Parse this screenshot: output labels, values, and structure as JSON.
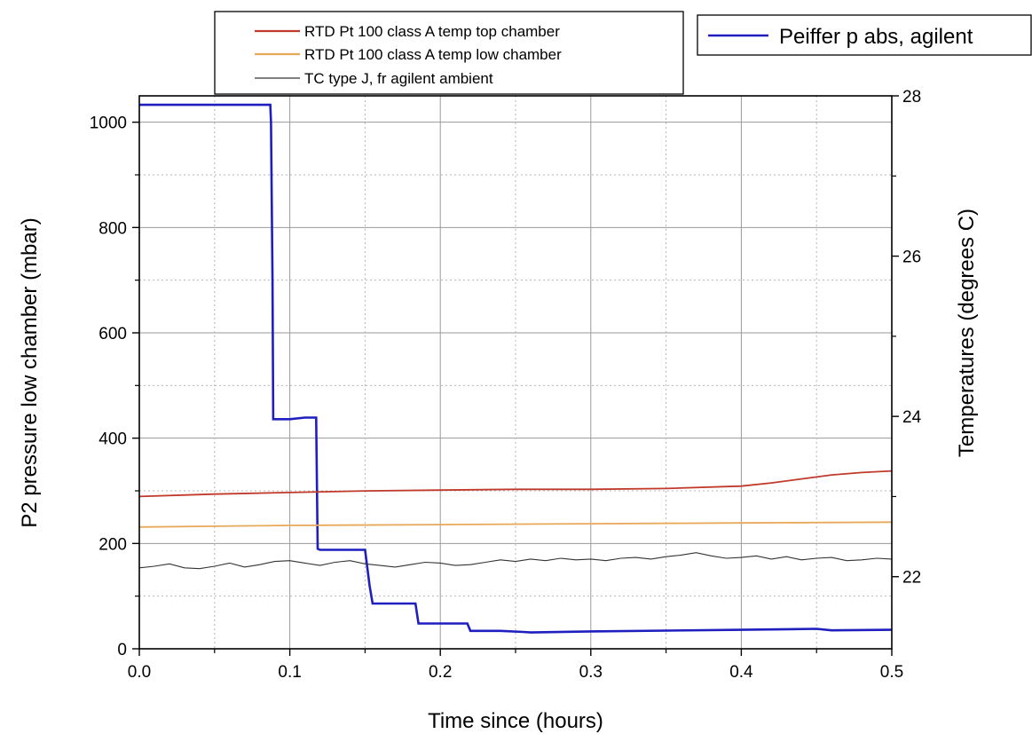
{
  "chart_data": {
    "type": "line",
    "xlabel": "Time since (hours)",
    "ylabel_left": "P2 pressure low chamber (mbar)",
    "ylabel_right": "Temperatures (degrees C)",
    "xlim": [
      0,
      0.5
    ],
    "ylim_left": [
      0,
      1050
    ],
    "ylim_right": [
      21.1,
      28
    ],
    "x_ticks": [
      0.0,
      0.1,
      0.2,
      0.3,
      0.4,
      0.5
    ],
    "x_tick_labels": [
      "0.0",
      "0.1",
      "0.2",
      "0.3",
      "0.4",
      "0.5"
    ],
    "y_left_ticks": [
      0,
      200,
      400,
      600,
      800,
      1000
    ],
    "y_left_tick_labels": [
      "0",
      "200",
      "400",
      "600",
      "800",
      "1000"
    ],
    "y_right_ticks": [
      22,
      24,
      26,
      28
    ],
    "y_right_tick_labels": [
      "22",
      "24",
      "26",
      "28"
    ],
    "grid": true,
    "legend_left_placement": "top-center",
    "legend_right_placement": "top-right",
    "series": [
      {
        "name": "Peiffer p abs, agilent",
        "axis": "left",
        "color": "#1f1fbf",
        "x": [
          0.0,
          0.087,
          0.0875,
          0.0885,
          0.089,
          0.1,
          0.11,
          0.1175,
          0.1185,
          0.12,
          0.13,
          0.15,
          0.153,
          0.155,
          0.17,
          0.1835,
          0.1855,
          0.2,
          0.218,
          0.22,
          0.24,
          0.255,
          0.26,
          0.3,
          0.4,
          0.45,
          0.46,
          0.5
        ],
        "values": [
          1033,
          1033,
          1000,
          700,
          436,
          436,
          439,
          439,
          190,
          188,
          188,
          188,
          120,
          86,
          86,
          86,
          48,
          48,
          48,
          34,
          34,
          32,
          31,
          33,
          36,
          38,
          35,
          36
        ]
      },
      {
        "name": "RTD Pt 100 class A temp top chamber",
        "axis": "right",
        "color": "#c0392b",
        "x": [
          0.0,
          0.05,
          0.1,
          0.15,
          0.2,
          0.25,
          0.3,
          0.35,
          0.4,
          0.42,
          0.44,
          0.46,
          0.48,
          0.5
        ],
        "values": [
          23.0,
          23.03,
          23.05,
          23.07,
          23.08,
          23.09,
          23.09,
          23.1,
          23.13,
          23.17,
          23.22,
          23.27,
          23.3,
          23.32
        ]
      },
      {
        "name": "RTD Pt 100 class A temp low chamber",
        "axis": "right",
        "color": "#e8a85a",
        "x": [
          0.0,
          0.1,
          0.2,
          0.3,
          0.4,
          0.5
        ],
        "values": [
          22.62,
          22.64,
          22.65,
          22.66,
          22.67,
          22.68
        ]
      },
      {
        "name": "TC type J, fr agilent ambient",
        "axis": "right",
        "color": "#333333",
        "x": [
          0.0,
          0.01,
          0.02,
          0.03,
          0.04,
          0.05,
          0.06,
          0.07,
          0.08,
          0.09,
          0.1,
          0.11,
          0.12,
          0.13,
          0.14,
          0.15,
          0.16,
          0.17,
          0.18,
          0.19,
          0.2,
          0.21,
          0.22,
          0.23,
          0.24,
          0.25,
          0.26,
          0.27,
          0.28,
          0.29,
          0.3,
          0.31,
          0.32,
          0.33,
          0.34,
          0.35,
          0.36,
          0.37,
          0.38,
          0.39,
          0.4,
          0.41,
          0.42,
          0.43,
          0.44,
          0.45,
          0.46,
          0.47,
          0.48,
          0.49,
          0.5
        ],
        "values": [
          22.11,
          22.13,
          22.16,
          22.11,
          22.1,
          22.13,
          22.17,
          22.12,
          22.15,
          22.19,
          22.2,
          22.17,
          22.14,
          22.18,
          22.2,
          22.16,
          22.14,
          22.12,
          22.15,
          22.18,
          22.17,
          22.14,
          22.15,
          22.18,
          22.21,
          22.19,
          22.22,
          22.2,
          22.23,
          22.21,
          22.22,
          22.2,
          22.23,
          22.24,
          22.22,
          22.25,
          22.27,
          22.3,
          22.26,
          22.23,
          22.24,
          22.26,
          22.22,
          22.25,
          22.21,
          22.23,
          22.24,
          22.2,
          22.21,
          22.23,
          22.22
        ]
      }
    ]
  }
}
